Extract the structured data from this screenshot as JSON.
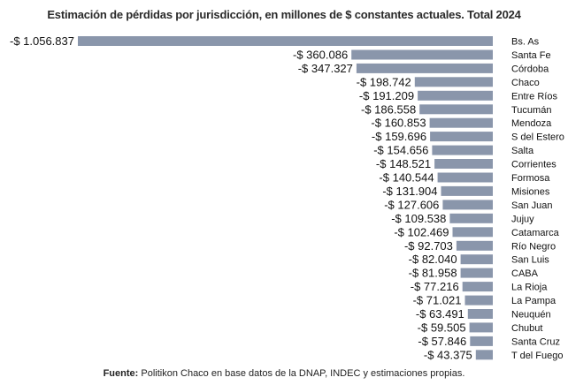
{
  "chart_data": {
    "type": "bar",
    "orientation": "horizontal",
    "title": "Estimación de pérdidas por jurisdicción, en millones de $ constantes actuales. Total 2024",
    "categories": [
      "Bs. As",
      "Santa Fe",
      "Córdoba",
      "Chaco",
      "Entre Ríos",
      "Tucumán",
      "Mendoza",
      "S del Estero",
      "Salta",
      "Corrientes",
      "Formosa",
      "Misiones",
      "San Juan",
      "Jujuy",
      "Catamarca",
      "Río Negro",
      "San Luis",
      "CABA",
      "La Rioja",
      "La Pampa",
      "Neuquén",
      "Chubut",
      "Santa Cruz",
      "T del Fuego"
    ],
    "values": [
      -1056837,
      -360086,
      -347327,
      -198742,
      -191209,
      -186558,
      -160853,
      -159696,
      -154656,
      -148521,
      -140544,
      -131904,
      -127606,
      -109538,
      -102469,
      -92703,
      -82040,
      -81958,
      -77216,
      -71021,
      -63491,
      -59505,
      -57846,
      -43375
    ],
    "value_labels": [
      "-$ 1.056.837",
      "-$ 360.086",
      "-$ 347.327",
      "-$ 198.742",
      "-$ 191.209",
      "-$ 186.558",
      "-$ 160.853",
      "-$ 159.696",
      "-$ 154.656",
      "-$ 148.521",
      "-$ 140.544",
      "-$ 131.904",
      "-$ 127.606",
      "-$ 109.538",
      "-$ 102.469",
      "-$ 92.703",
      "-$ 82.040",
      "-$ 81.958",
      "-$ 77.216",
      "-$ 71.021",
      "-$ 63.491",
      "-$ 59.505",
      "-$ 57.846",
      "-$ 43.375"
    ],
    "bar_color": "#8a96ab",
    "grid": false,
    "legend": "none"
  },
  "source": {
    "label": "Fuente:",
    "text": " Politikon Chaco en base datos de la DNAP, INDEC y estimaciones propias."
  }
}
